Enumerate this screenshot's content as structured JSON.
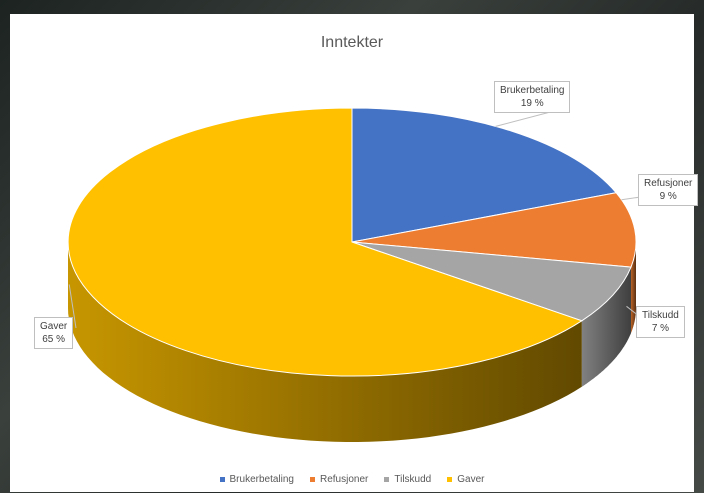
{
  "chart_data": {
    "type": "pie",
    "title": "Inntekter",
    "categories": [
      "Brukerbetaling",
      "Refusjoner",
      "Tilskudd",
      "Gaver"
    ],
    "values": [
      19,
      9,
      7,
      65
    ],
    "value_labels": [
      "19 %",
      "9 %",
      "7 %",
      "65 %"
    ],
    "colors": [
      "#4472C4",
      "#ED7D31",
      "#A5A5A5",
      "#FFC000"
    ],
    "legend_position": "bottom",
    "style": "3d"
  }
}
